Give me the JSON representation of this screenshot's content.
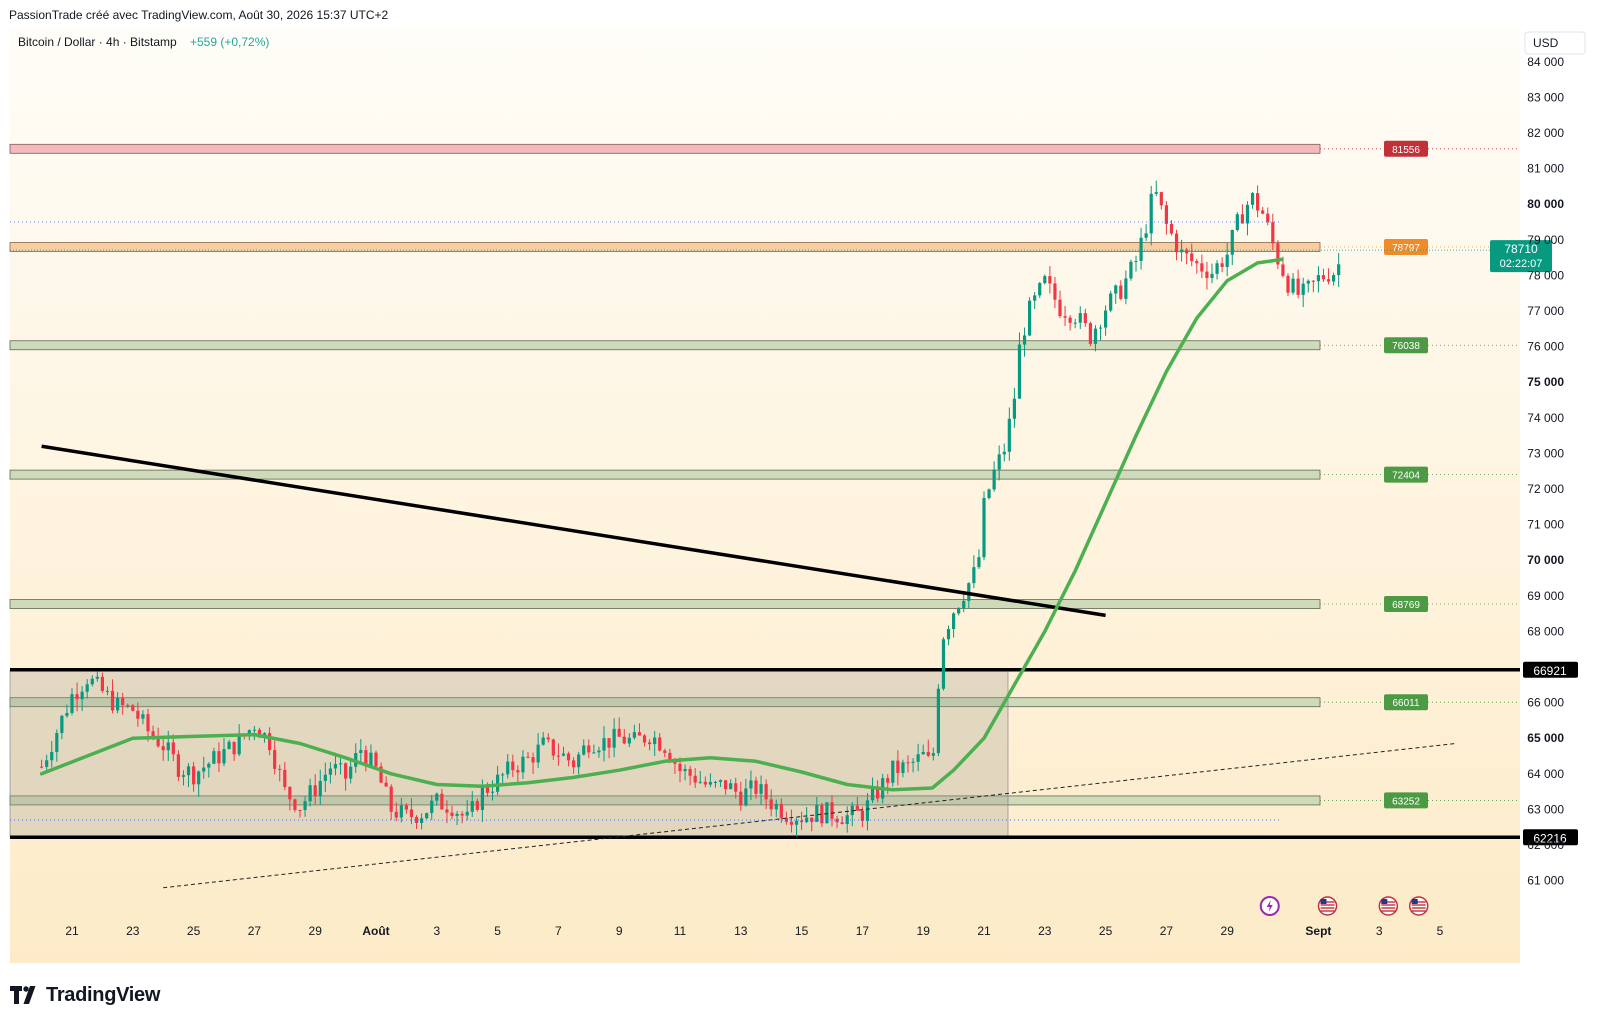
{
  "header": {
    "caption": "PassionTrade créé avec TradingView.com, Août 30, 2026 15:37 UTC+2"
  },
  "chart_data": {
    "type": "candlestick",
    "symbol_title": "Bitcoin / Dollar · 4h · Bitstamp",
    "change_text": "+559 (+0,72%)",
    "currency": "USD",
    "y_range": [
      60400,
      84700
    ],
    "y_ticks": [
      {
        "v": 84000,
        "t": "84 000"
      },
      {
        "v": 83000,
        "t": "83 000"
      },
      {
        "v": 82000,
        "t": "82 000"
      },
      {
        "v": 81000,
        "t": "81 000"
      },
      {
        "v": 80000,
        "t": "80 000",
        "bold": true
      },
      {
        "v": 79000,
        "t": "79 000"
      },
      {
        "v": 78000,
        "t": "78 000"
      },
      {
        "v": 77000,
        "t": "77 000"
      },
      {
        "v": 76000,
        "t": "76 000"
      },
      {
        "v": 75000,
        "t": "75 000",
        "bold": true
      },
      {
        "v": 74000,
        "t": "74 000"
      },
      {
        "v": 73000,
        "t": "73 000"
      },
      {
        "v": 72000,
        "t": "72 000"
      },
      {
        "v": 71000,
        "t": "71 000"
      },
      {
        "v": 70000,
        "t": "70 000",
        "bold": true
      },
      {
        "v": 69000,
        "t": "69 000"
      },
      {
        "v": 68000,
        "t": "68 000"
      },
      {
        "v": 66000,
        "t": "66 000"
      },
      {
        "v": 65000,
        "t": "65 000",
        "bold": true
      },
      {
        "v": 64000,
        "t": "64 000"
      },
      {
        "v": 63000,
        "t": "63 000"
      },
      {
        "v": 62000,
        "t": "62 000"
      },
      {
        "v": 61000,
        "t": "61 000"
      }
    ],
    "x_ticks": [
      {
        "d": -10,
        "t": "21"
      },
      {
        "d": -8,
        "t": "23"
      },
      {
        "d": -6,
        "t": "25"
      },
      {
        "d": -4,
        "t": "27"
      },
      {
        "d": -2,
        "t": "29"
      },
      {
        "d": 0,
        "t": "Août",
        "bold": true
      },
      {
        "d": 2,
        "t": "3"
      },
      {
        "d": 4,
        "t": "5"
      },
      {
        "d": 6,
        "t": "7"
      },
      {
        "d": 8,
        "t": "9"
      },
      {
        "d": 10,
        "t": "11"
      },
      {
        "d": 12,
        "t": "13"
      },
      {
        "d": 14,
        "t": "15"
      },
      {
        "d": 16,
        "t": "17"
      },
      {
        "d": 18,
        "t": "19"
      },
      {
        "d": 20,
        "t": "21"
      },
      {
        "d": 22,
        "t": "23"
      },
      {
        "d": 24,
        "t": "25"
      },
      {
        "d": 26,
        "t": "27"
      },
      {
        "d": 28,
        "t": "29"
      },
      {
        "d": 31,
        "t": "Sept",
        "bold": true
      },
      {
        "d": 33,
        "t": "3"
      },
      {
        "d": 35,
        "t": "5"
      }
    ],
    "zones": [
      {
        "level": 81556,
        "label": "81556",
        "kind": "resistance"
      },
      {
        "level": 78797,
        "label": "78797",
        "kind": "pivot"
      },
      {
        "level": 76038,
        "label": "76038",
        "kind": "support"
      },
      {
        "level": 72404,
        "label": "72404",
        "kind": "support"
      },
      {
        "level": 68769,
        "label": "68769",
        "kind": "support"
      },
      {
        "level": 66011,
        "label": "66011",
        "kind": "support"
      },
      {
        "level": 63252,
        "label": "63252",
        "kind": "support"
      }
    ],
    "range_box": {
      "high": 66921,
      "low": 62216,
      "high_label": "66921",
      "low_label": "62216"
    },
    "current_price": {
      "value": 78710,
      "label": "78710",
      "countdown": "02:22:07"
    },
    "descending_trendline": [
      {
        "d": -11,
        "v": 73200
      },
      {
        "d": 24,
        "v": 68450
      }
    ],
    "ascending_dashed_line": [
      {
        "d": -7,
        "v": 60800
      },
      {
        "d": 35.5,
        "v": 64850
      }
    ],
    "ma_line": [
      {
        "d": -11,
        "v": 64000
      },
      {
        "d": -9.5,
        "v": 64500
      },
      {
        "d": -8,
        "v": 65000
      },
      {
        "d": -6,
        "v": 65050
      },
      {
        "d": -4,
        "v": 65100
      },
      {
        "d": -2.5,
        "v": 64850
      },
      {
        "d": -1,
        "v": 64450
      },
      {
        "d": 0.5,
        "v": 64000
      },
      {
        "d": 2,
        "v": 63700
      },
      {
        "d": 3.5,
        "v": 63650
      },
      {
        "d": 5,
        "v": 63750
      },
      {
        "d": 6.5,
        "v": 63900
      },
      {
        "d": 8,
        "v": 64100
      },
      {
        "d": 9.5,
        "v": 64350
      },
      {
        "d": 11,
        "v": 64450
      },
      {
        "d": 12.5,
        "v": 64350
      },
      {
        "d": 14,
        "v": 64050
      },
      {
        "d": 15.5,
        "v": 63700
      },
      {
        "d": 17,
        "v": 63550
      },
      {
        "d": 18.3,
        "v": 63600
      },
      {
        "d": 19,
        "v": 64100
      },
      {
        "d": 20,
        "v": 65000
      },
      {
        "d": 21,
        "v": 66500
      },
      {
        "d": 22,
        "v": 68000
      },
      {
        "d": 23,
        "v": 69700
      },
      {
        "d": 24,
        "v": 71600
      },
      {
        "d": 25,
        "v": 73500
      },
      {
        "d": 26,
        "v": 75300
      },
      {
        "d": 27,
        "v": 76800
      },
      {
        "d": 28,
        "v": 77850
      },
      {
        "d": 29,
        "v": 78350
      },
      {
        "d": 29.8,
        "v": 78450
      }
    ],
    "price_path": [
      {
        "d": -11,
        "v": 64200
      },
      {
        "d": -10.5,
        "v": 65200
      },
      {
        "d": -10,
        "v": 66200
      },
      {
        "d": -9.5,
        "v": 66700
      },
      {
        "d": -9,
        "v": 66300
      },
      {
        "d": -8.5,
        "v": 65900
      },
      {
        "d": -8,
        "v": 65800
      },
      {
        "d": -7.5,
        "v": 65200
      },
      {
        "d": -7,
        "v": 64800
      },
      {
        "d": -6.5,
        "v": 64200
      },
      {
        "d": -6,
        "v": 64000
      },
      {
        "d": -5.5,
        "v": 64300
      },
      {
        "d": -5,
        "v": 64600
      },
      {
        "d": -4.5,
        "v": 64900
      },
      {
        "d": -4,
        "v": 65400
      },
      {
        "d": -3.5,
        "v": 64900
      },
      {
        "d": -3,
        "v": 63500
      },
      {
        "d": -2.5,
        "v": 63100
      },
      {
        "d": -2,
        "v": 63600
      },
      {
        "d": -1.5,
        "v": 64200
      },
      {
        "d": -1,
        "v": 63900
      },
      {
        "d": -0.5,
        "v": 64700
      },
      {
        "d": 0,
        "v": 64100
      },
      {
        "d": 0.5,
        "v": 63000
      },
      {
        "d": 1,
        "v": 62800
      },
      {
        "d": 1.5,
        "v": 62900
      },
      {
        "d": 2,
        "v": 63200
      },
      {
        "d": 2.5,
        "v": 63100
      },
      {
        "d": 3,
        "v": 62700
      },
      {
        "d": 3.5,
        "v": 63500
      },
      {
        "d": 4,
        "v": 63800
      },
      {
        "d": 4.5,
        "v": 64200
      },
      {
        "d": 5,
        "v": 64400
      },
      {
        "d": 5.5,
        "v": 64800
      },
      {
        "d": 6,
        "v": 64600
      },
      {
        "d": 6.5,
        "v": 64300
      },
      {
        "d": 7,
        "v": 64900
      },
      {
        "d": 7.5,
        "v": 64900
      },
      {
        "d": 8,
        "v": 65000
      },
      {
        "d": 8.5,
        "v": 64900
      },
      {
        "d": 9,
        "v": 65100
      },
      {
        "d": 9.5,
        "v": 64800
      },
      {
        "d": 10,
        "v": 64100
      },
      {
        "d": 10.5,
        "v": 63900
      },
      {
        "d": 11,
        "v": 63600
      },
      {
        "d": 11.5,
        "v": 63700
      },
      {
        "d": 12,
        "v": 63400
      },
      {
        "d": 12.5,
        "v": 63600
      },
      {
        "d": 13,
        "v": 63200
      },
      {
        "d": 13.5,
        "v": 62900
      },
      {
        "d": 14,
        "v": 62800
      },
      {
        "d": 14.5,
        "v": 62900
      },
      {
        "d": 15,
        "v": 62900
      },
      {
        "d": 15.5,
        "v": 62800
      },
      {
        "d": 16,
        "v": 62900
      },
      {
        "d": 16.5,
        "v": 63500
      },
      {
        "d": 17,
        "v": 64100
      },
      {
        "d": 17.5,
        "v": 64200
      },
      {
        "d": 18,
        "v": 64500
      },
      {
        "d": 18.3,
        "v": 64200
      },
      {
        "d": 18.6,
        "v": 67800
      },
      {
        "d": 19,
        "v": 68600
      },
      {
        "d": 19.4,
        "v": 69200
      },
      {
        "d": 19.8,
        "v": 69800
      },
      {
        "d": 20,
        "v": 71500
      },
      {
        "d": 20.3,
        "v": 72400
      },
      {
        "d": 20.7,
        "v": 73200
      },
      {
        "d": 21,
        "v": 74600
      },
      {
        "d": 21.2,
        "v": 76200
      },
      {
        "d": 21.5,
        "v": 77000
      },
      {
        "d": 22,
        "v": 77800
      },
      {
        "d": 22.5,
        "v": 77100
      },
      {
        "d": 23,
        "v": 76900
      },
      {
        "d": 23.5,
        "v": 76300
      },
      {
        "d": 24,
        "v": 77100
      },
      {
        "d": 24.5,
        "v": 77600
      },
      {
        "d": 25,
        "v": 78400
      },
      {
        "d": 25.3,
        "v": 79300
      },
      {
        "d": 25.6,
        "v": 80400
      },
      {
        "d": 26,
        "v": 79400
      },
      {
        "d": 26.5,
        "v": 78600
      },
      {
        "d": 27,
        "v": 78300
      },
      {
        "d": 27.5,
        "v": 78100
      },
      {
        "d": 28,
        "v": 78600
      },
      {
        "d": 28.4,
        "v": 79600
      },
      {
        "d": 28.8,
        "v": 80200
      },
      {
        "d": 29.2,
        "v": 79700
      },
      {
        "d": 29.6,
        "v": 78600
      },
      {
        "d": 30,
        "v": 77800
      },
      {
        "d": 30.4,
        "v": 77400
      },
      {
        "d": 30.8,
        "v": 77700
      },
      {
        "d": 31,
        "v": 77900
      },
      {
        "d": 31.4,
        "v": 78100
      },
      {
        "d": 31.6,
        "v": 78100
      },
      {
        "d": 31.8,
        "v": 78710
      }
    ]
  },
  "footer": {
    "brand": "TradingView"
  }
}
